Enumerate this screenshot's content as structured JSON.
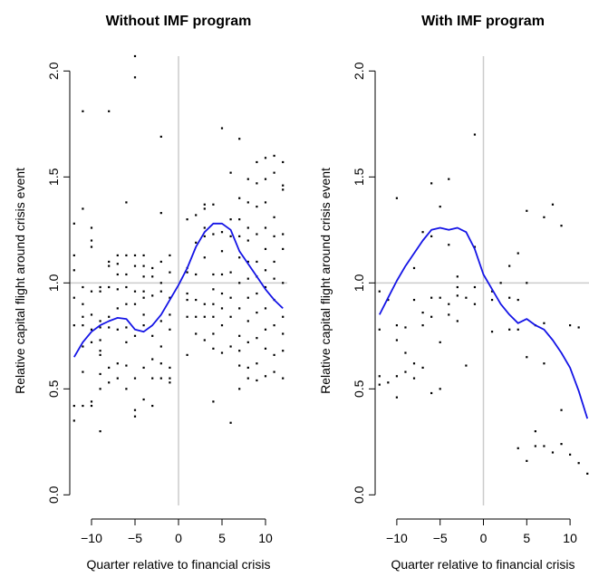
{
  "chart_data": [
    {
      "type": "scatter",
      "title": "Without IMF program",
      "xlabel": "Quarter relative to financial crisis",
      "ylabel": "Relative capital flight around crisis event",
      "xlim": [
        -12.5,
        12.5
      ],
      "ylim": [
        -0.05,
        2.07
      ],
      "x_ticks": [
        -10,
        -5,
        0,
        5,
        10
      ],
      "x_tick_labels": [
        "−10",
        "−5",
        "0",
        "5",
        "10"
      ],
      "y_ticks": [
        0.0,
        0.5,
        1.0,
        1.5,
        2.0
      ],
      "y_tick_labels": [
        "0.0",
        "0.5",
        "1.0",
        "1.5",
        "2.0"
      ],
      "reference_lines": {
        "x": 0,
        "y": 1.0,
        "color": "#cccccc"
      },
      "grid": false,
      "point_color": "#000000",
      "curve_color": "#1414e6",
      "points": [
        [
          -12,
          1.28
        ],
        [
          -12,
          1.13
        ],
        [
          -12,
          1.06
        ],
        [
          -12,
          0.93
        ],
        [
          -12,
          0.8
        ],
        [
          -12,
          0.42
        ],
        [
          -12,
          0.35
        ],
        [
          -11,
          1.81
        ],
        [
          -11,
          1.35
        ],
        [
          -11,
          0.98
        ],
        [
          -11,
          0.9
        ],
        [
          -11,
          0.84
        ],
        [
          -11,
          0.8
        ],
        [
          -11,
          0.7
        ],
        [
          -11,
          0.58
        ],
        [
          -11,
          0.42
        ],
        [
          -10,
          1.26
        ],
        [
          -10,
          1.2
        ],
        [
          -10,
          1.17
        ],
        [
          -10,
          0.96
        ],
        [
          -10,
          0.85
        ],
        [
          -10,
          0.78
        ],
        [
          -10,
          0.72
        ],
        [
          -10,
          0.44
        ],
        [
          -10,
          0.42
        ],
        [
          -9,
          0.98
        ],
        [
          -9,
          0.96
        ],
        [
          -9,
          0.82
        ],
        [
          -9,
          0.79
        ],
        [
          -9,
          0.73
        ],
        [
          -9,
          0.68
        ],
        [
          -9,
          0.66
        ],
        [
          -9,
          0.57
        ],
        [
          -9,
          0.5
        ],
        [
          -9,
          0.3
        ],
        [
          -8,
          1.81
        ],
        [
          -8,
          1.1
        ],
        [
          -8,
          1.08
        ],
        [
          -8,
          0.98
        ],
        [
          -8,
          0.84
        ],
        [
          -8,
          0.79
        ],
        [
          -8,
          0.6
        ],
        [
          -8,
          0.53
        ],
        [
          -7,
          1.13
        ],
        [
          -7,
          1.09
        ],
        [
          -7,
          1.04
        ],
        [
          -7,
          0.97
        ],
        [
          -7,
          0.88
        ],
        [
          -7,
          0.78
        ],
        [
          -7,
          0.62
        ],
        [
          -7,
          0.55
        ],
        [
          -6,
          1.38
        ],
        [
          -6,
          1.13
        ],
        [
          -6,
          1.04
        ],
        [
          -6,
          0.98
        ],
        [
          -6,
          0.9
        ],
        [
          -6,
          0.79
        ],
        [
          -6,
          0.72
        ],
        [
          -6,
          0.61
        ],
        [
          -6,
          0.5
        ],
        [
          -5,
          2.07
        ],
        [
          -5,
          1.97
        ],
        [
          -5,
          1.13
        ],
        [
          -5,
          1.08
        ],
        [
          -5,
          0.96
        ],
        [
          -5,
          0.9
        ],
        [
          -5,
          0.75
        ],
        [
          -5,
          0.55
        ],
        [
          -5,
          0.4
        ],
        [
          -5,
          0.37
        ],
        [
          -4,
          1.13
        ],
        [
          -4,
          1.08
        ],
        [
          -4,
          1.03
        ],
        [
          -4,
          0.96
        ],
        [
          -4,
          0.93
        ],
        [
          -4,
          0.85
        ],
        [
          -4,
          0.8
        ],
        [
          -4,
          0.6
        ],
        [
          -4,
          0.45
        ],
        [
          -3,
          1.07
        ],
        [
          -3,
          1.03
        ],
        [
          -3,
          0.94
        ],
        [
          -3,
          0.75
        ],
        [
          -3,
          0.64
        ],
        [
          -3,
          0.55
        ],
        [
          -3,
          0.42
        ],
        [
          -2,
          1.69
        ],
        [
          -2,
          1.33
        ],
        [
          -2,
          1.1
        ],
        [
          -2,
          1.0
        ],
        [
          -2,
          0.96
        ],
        [
          -2,
          0.82
        ],
        [
          -2,
          0.7
        ],
        [
          -2,
          0.62
        ],
        [
          -2,
          0.55
        ],
        [
          -1,
          1.13
        ],
        [
          -1,
          1.05
        ],
        [
          -1,
          0.93
        ],
        [
          -1,
          0.85
        ],
        [
          -1,
          0.78
        ],
        [
          -1,
          0.6
        ],
        [
          -1,
          0.55
        ],
        [
          -1,
          0.53
        ],
        [
          1,
          1.3
        ],
        [
          1,
          1.07
        ],
        [
          1,
          1.05
        ],
        [
          1,
          0.95
        ],
        [
          1,
          0.92
        ],
        [
          1,
          0.84
        ],
        [
          1,
          0.66
        ],
        [
          2,
          1.32
        ],
        [
          2,
          1.19
        ],
        [
          2,
          1.04
        ],
        [
          2,
          0.92
        ],
        [
          2,
          0.84
        ],
        [
          2,
          0.76
        ],
        [
          3,
          1.37
        ],
        [
          3,
          1.35
        ],
        [
          3,
          1.26
        ],
        [
          3,
          1.22
        ],
        [
          3,
          1.12
        ],
        [
          3,
          0.9
        ],
        [
          3,
          0.84
        ],
        [
          3,
          0.73
        ],
        [
          4,
          1.37
        ],
        [
          4,
          1.23
        ],
        [
          4,
          1.04
        ],
        [
          4,
          0.97
        ],
        [
          4,
          0.9
        ],
        [
          4,
          0.84
        ],
        [
          4,
          0.76
        ],
        [
          4,
          0.69
        ],
        [
          4,
          0.44
        ],
        [
          5,
          1.73
        ],
        [
          5,
          1.24
        ],
        [
          5,
          1.15
        ],
        [
          5,
          1.04
        ],
        [
          5,
          0.95
        ],
        [
          5,
          0.88
        ],
        [
          5,
          0.8
        ],
        [
          5,
          0.67
        ],
        [
          6,
          1.52
        ],
        [
          6,
          1.3
        ],
        [
          6,
          1.22
        ],
        [
          6,
          1.05
        ],
        [
          6,
          0.93
        ],
        [
          6,
          0.84
        ],
        [
          6,
          0.7
        ],
        [
          6,
          0.34
        ],
        [
          7,
          1.68
        ],
        [
          7,
          1.4
        ],
        [
          7,
          1.3
        ],
        [
          7,
          1.22
        ],
        [
          7,
          1.12
        ],
        [
          7,
          1.0
        ],
        [
          7,
          0.88
        ],
        [
          7,
          0.75
        ],
        [
          7,
          0.68
        ],
        [
          7,
          0.61
        ],
        [
          7,
          0.5
        ],
        [
          8,
          1.49
        ],
        [
          8,
          1.38
        ],
        [
          8,
          1.26
        ],
        [
          8,
          1.2
        ],
        [
          8,
          1.1
        ],
        [
          8,
          1.02
        ],
        [
          8,
          0.93
        ],
        [
          8,
          0.82
        ],
        [
          8,
          0.72
        ],
        [
          8,
          0.6
        ],
        [
          8,
          0.55
        ],
        [
          9,
          1.57
        ],
        [
          9,
          1.47
        ],
        [
          9,
          1.36
        ],
        [
          9,
          1.23
        ],
        [
          9,
          1.1
        ],
        [
          9,
          1.03
        ],
        [
          9,
          0.95
        ],
        [
          9,
          0.86
        ],
        [
          9,
          0.74
        ],
        [
          9,
          0.62
        ],
        [
          9,
          0.54
        ],
        [
          10,
          1.59
        ],
        [
          10,
          1.49
        ],
        [
          10,
          1.38
        ],
        [
          10,
          1.26
        ],
        [
          10,
          1.16
        ],
        [
          10,
          1.06
        ],
        [
          10,
          0.98
        ],
        [
          10,
          0.88
        ],
        [
          10,
          0.78
        ],
        [
          10,
          0.69
        ],
        [
          10,
          0.56
        ],
        [
          11,
          1.6
        ],
        [
          11,
          1.52
        ],
        [
          11,
          1.31
        ],
        [
          11,
          1.22
        ],
        [
          11,
          1.1
        ],
        [
          11,
          1.02
        ],
        [
          11,
          0.92
        ],
        [
          11,
          0.8
        ],
        [
          11,
          0.66
        ],
        [
          11,
          0.58
        ],
        [
          12,
          1.57
        ],
        [
          12,
          1.46
        ],
        [
          12,
          1.44
        ],
        [
          12,
          1.23
        ],
        [
          12,
          1.16
        ],
        [
          12,
          1.0
        ],
        [
          12,
          0.84
        ],
        [
          12,
          0.76
        ],
        [
          12,
          0.68
        ],
        [
          12,
          0.55
        ]
      ],
      "curve": {
        "x": [
          -12,
          -11,
          -10,
          -9,
          -8,
          -7,
          -6,
          -5,
          -4,
          -3,
          -2,
          -1,
          0,
          1,
          2,
          3,
          4,
          5,
          6,
          7,
          8,
          9,
          10,
          11,
          12
        ],
        "y": [
          0.65,
          0.72,
          0.77,
          0.8,
          0.82,
          0.835,
          0.83,
          0.78,
          0.77,
          0.8,
          0.85,
          0.92,
          0.99,
          1.07,
          1.17,
          1.24,
          1.28,
          1.28,
          1.25,
          1.15,
          1.09,
          1.03,
          0.97,
          0.92,
          0.88
        ]
      }
    },
    {
      "type": "scatter",
      "title": "With IMF program",
      "xlabel": "Quarter relative to financial crisis",
      "ylabel": "Relative capital flight around crisis event",
      "xlim": [
        -12.5,
        12.5
      ],
      "ylim": [
        -0.05,
        2.07
      ],
      "x_ticks": [
        -10,
        -5,
        0,
        5,
        10
      ],
      "x_tick_labels": [
        "−10",
        "−5",
        "0",
        "5",
        "10"
      ],
      "y_ticks": [
        0.0,
        0.5,
        1.0,
        1.5,
        2.0
      ],
      "y_tick_labels": [
        "0.0",
        "0.5",
        "1.0",
        "1.5",
        "2.0"
      ],
      "reference_lines": {
        "x": 0,
        "y": 1.0,
        "color": "#cccccc"
      },
      "grid": false,
      "point_color": "#000000",
      "curve_color": "#1414e6",
      "points": [
        [
          -12,
          0.96
        ],
        [
          -12,
          0.78
        ],
        [
          -12,
          0.56
        ],
        [
          -12,
          0.52
        ],
        [
          -11,
          0.92
        ],
        [
          -11,
          0.53
        ],
        [
          -10,
          1.4
        ],
        [
          -10,
          0.8
        ],
        [
          -10,
          0.73
        ],
        [
          -10,
          0.56
        ],
        [
          -10,
          0.46
        ],
        [
          -9,
          0.79
        ],
        [
          -9,
          0.67
        ],
        [
          -9,
          0.58
        ],
        [
          -8,
          1.07
        ],
        [
          -8,
          0.92
        ],
        [
          -8,
          0.62
        ],
        [
          -8,
          0.55
        ],
        [
          -7,
          1.24
        ],
        [
          -7,
          0.86
        ],
        [
          -7,
          0.8
        ],
        [
          -7,
          0.6
        ],
        [
          -6,
          1.47
        ],
        [
          -6,
          1.22
        ],
        [
          -6,
          0.93
        ],
        [
          -6,
          0.84
        ],
        [
          -6,
          0.48
        ],
        [
          -5,
          1.36
        ],
        [
          -5,
          0.93
        ],
        [
          -5,
          0.72
        ],
        [
          -5,
          0.5
        ],
        [
          -4,
          1.49
        ],
        [
          -4,
          1.18
        ],
        [
          -4,
          0.9
        ],
        [
          -4,
          0.85
        ],
        [
          -3,
          1.03
        ],
        [
          -3,
          0.98
        ],
        [
          -3,
          0.94
        ],
        [
          -3,
          0.82
        ],
        [
          -2,
          0.93
        ],
        [
          -2,
          0.61
        ],
        [
          -1,
          1.7
        ],
        [
          -1,
          1.17
        ],
        [
          -1,
          0.98
        ],
        [
          -1,
          0.9
        ],
        [
          1,
          0.96
        ],
        [
          1,
          0.92
        ],
        [
          1,
          0.77
        ],
        [
          2,
          1.0
        ],
        [
          3,
          1.08
        ],
        [
          3,
          0.93
        ],
        [
          3,
          0.78
        ],
        [
          4,
          1.14
        ],
        [
          4,
          0.92
        ],
        [
          4,
          0.78
        ],
        [
          4,
          0.22
        ],
        [
          5,
          1.34
        ],
        [
          5,
          1.0
        ],
        [
          5,
          0.65
        ],
        [
          5,
          0.16
        ],
        [
          6,
          0.8
        ],
        [
          6,
          0.3
        ],
        [
          6,
          0.23
        ],
        [
          7,
          1.31
        ],
        [
          7,
          0.81
        ],
        [
          7,
          0.62
        ],
        [
          7,
          0.23
        ],
        [
          8,
          1.37
        ],
        [
          8,
          0.2
        ],
        [
          9,
          1.27
        ],
        [
          9,
          0.4
        ],
        [
          9,
          0.24
        ],
        [
          10,
          0.8
        ],
        [
          10,
          0.19
        ],
        [
          11,
          0.79
        ],
        [
          11,
          0.15
        ],
        [
          12,
          0.1
        ]
      ],
      "curve": {
        "x": [
          -12,
          -11,
          -10,
          -9,
          -8,
          -7,
          -6,
          -5,
          -4,
          -3,
          -2,
          -1,
          0,
          1,
          2,
          3,
          4,
          5,
          6,
          7,
          8,
          9,
          10,
          11,
          12
        ],
        "y": [
          0.85,
          0.93,
          1.01,
          1.08,
          1.14,
          1.2,
          1.25,
          1.26,
          1.25,
          1.26,
          1.24,
          1.16,
          1.04,
          0.97,
          0.9,
          0.85,
          0.81,
          0.83,
          0.8,
          0.78,
          0.73,
          0.67,
          0.6,
          0.49,
          0.36
        ]
      }
    }
  ]
}
